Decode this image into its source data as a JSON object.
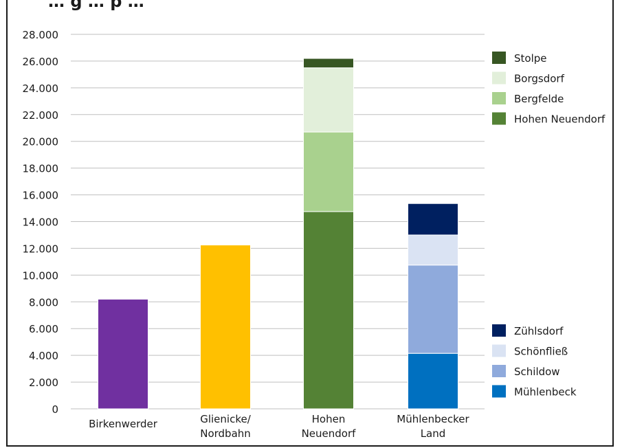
{
  "chart_data": {
    "type": "bar",
    "stacked": true,
    "title": "… g … p …",
    "xlabel": "",
    "ylabel": "",
    "ylim": [
      0,
      28000
    ],
    "yticks": [
      0,
      2000,
      4000,
      6000,
      8000,
      10000,
      12000,
      14000,
      16000,
      18000,
      20000,
      22000,
      24000,
      26000,
      28000
    ],
    "ytick_labels": [
      "0",
      "2.000",
      "4.000",
      "6.000",
      "8.000",
      "10.000",
      "12.000",
      "14.000",
      "16.000",
      "18.000",
      "20.000",
      "22.000",
      "24.000",
      "26.000",
      "28.000"
    ],
    "grid": "horizontal",
    "categories": [
      {
        "label": [
          "Birkenwerder"
        ]
      },
      {
        "label": [
          "Glienicke/",
          "Nordbahn"
        ]
      },
      {
        "label": [
          "Hohen",
          "Neuendorf"
        ]
      },
      {
        "label": [
          "Mühlenbecker",
          "Land"
        ]
      }
    ],
    "bars": [
      [
        {
          "name": "Birkenwerder",
          "value": 8200,
          "color": "#7030a0"
        }
      ],
      [
        {
          "name": "Glienicke/Nordbahn",
          "value": 12250,
          "color": "#ffc000"
        }
      ],
      [
        {
          "name": "Hohen Neuendorf",
          "value": 14750,
          "color": "#548235"
        },
        {
          "name": "Bergfelde",
          "value": 5950,
          "color": "#a9d18e"
        },
        {
          "name": "Borgsdorf",
          "value": 4800,
          "color": "#e2efda"
        },
        {
          "name": "Stolpe",
          "value": 700,
          "color": "#375623"
        }
      ],
      [
        {
          "name": "Mühlenbeck",
          "value": 4150,
          "color": "#0070c0"
        },
        {
          "name": "Schildow",
          "value": 6600,
          "color": "#8faadc"
        },
        {
          "name": "Schönfließ",
          "value": 2250,
          "color": "#dae3f3"
        },
        {
          "name": "Zühlsdorf",
          "value": 2350,
          "color": "#002060"
        }
      ]
    ],
    "legend_top": [
      {
        "label": "Stolpe",
        "color": "#375623"
      },
      {
        "label": "Borgsdorf",
        "color": "#e2efda"
      },
      {
        "label": "Bergfelde",
        "color": "#a9d18e"
      },
      {
        "label": "Hohen Neuendorf",
        "color": "#548235"
      }
    ],
    "legend_bottom": [
      {
        "label": "Zühlsdorf",
        "color": "#002060"
      },
      {
        "label": "Schönfließ",
        "color": "#dae3f3"
      },
      {
        "label": "Schildow",
        "color": "#8faadc"
      },
      {
        "label": "Mühlenbeck",
        "color": "#0070c0"
      }
    ],
    "legend_placement": "right"
  },
  "colors": {
    "gridline": "#bfbfbf",
    "axis": "#bfbfbf",
    "frame": "#1a1a1a"
  }
}
